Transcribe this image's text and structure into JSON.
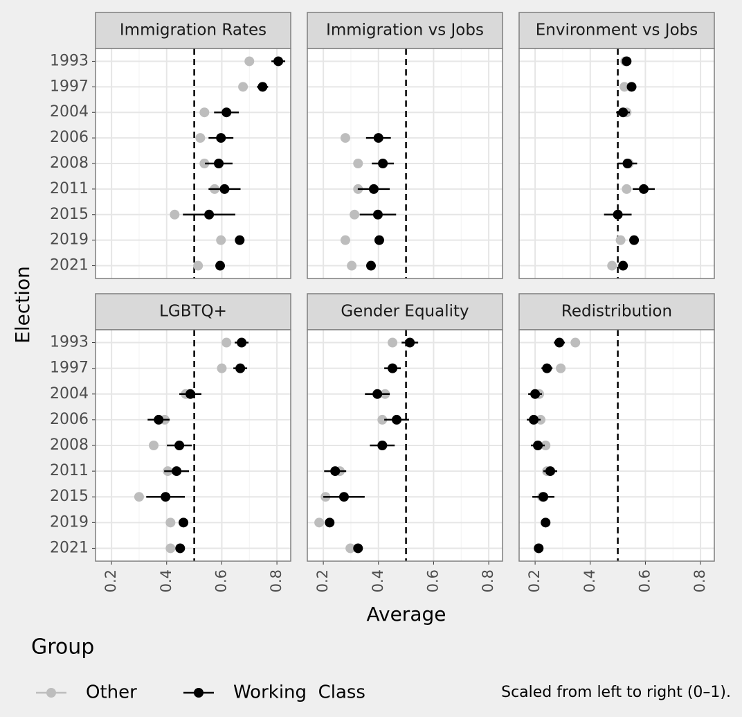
{
  "x_label": "Average",
  "y_label": "Election",
  "legend_title": "Group",
  "caption": "Scaled from left to right (0–1).",
  "chart_data": [
    {
      "type": "dot",
      "title": "Immigration Rates",
      "categories": [
        "1993",
        "1997",
        "2004",
        "2006",
        "2008",
        "2011",
        "2015",
        "2019",
        "2021"
      ],
      "series": [
        {
          "name": "Other",
          "color": "#bdbdbd",
          "values": [
            0.7,
            0.677,
            0.537,
            0.522,
            0.537,
            0.574,
            0.429,
            0.597,
            0.514
          ]
        },
        {
          "name": "Working  Class",
          "color": "#000000",
          "values": [
            0.805,
            0.748,
            0.617,
            0.597,
            0.589,
            0.61,
            0.554,
            0.665,
            0.594
          ],
          "errors": [
            0.025,
            0.02,
            0.045,
            0.045,
            0.05,
            0.058,
            0.095,
            0.012,
            0.012
          ]
        }
      ],
      "xlim": [
        0.142,
        0.85
      ],
      "xticks": [
        0.2,
        0.4,
        0.6,
        0.8
      ],
      "minor_xticks": [
        0.3,
        0.5,
        0.7
      ],
      "vline": 0.5,
      "grid": true
    },
    {
      "type": "dot",
      "title": "Immigration vs Jobs",
      "categories": [
        "1993",
        "1997",
        "2004",
        "2006",
        "2008",
        "2011",
        "2015",
        "2019",
        "2021"
      ],
      "series": [
        {
          "name": "Other",
          "color": "#bdbdbd",
          "values": [
            null,
            null,
            null,
            0.28,
            0.326,
            0.326,
            0.313,
            0.28,
            0.303
          ]
        },
        {
          "name": "Working  Class",
          "color": "#000000",
          "values": [
            null,
            null,
            null,
            0.4,
            0.416,
            0.383,
            0.398,
            0.403,
            0.373
          ],
          "errors": [
            null,
            null,
            null,
            0.045,
            0.04,
            0.058,
            0.066,
            0.012,
            0.012
          ]
        }
      ],
      "xlim": [
        0.142,
        0.85
      ],
      "xticks": [
        0.2,
        0.4,
        0.6,
        0.8
      ],
      "minor_xticks": [
        0.3,
        0.5,
        0.7
      ],
      "vline": 0.5,
      "grid": true
    },
    {
      "type": "dot",
      "title": "Environment vs Jobs",
      "categories": [
        "1993",
        "1997",
        "2004",
        "2006",
        "2008",
        "2011",
        "2015",
        "2019",
        "2021"
      ],
      "series": [
        {
          "name": "Other",
          "color": "#bdbdbd",
          "values": [
            0.527,
            0.524,
            0.532,
            null,
            0.54,
            0.532,
            0.5,
            0.51,
            0.479
          ]
        },
        {
          "name": "Working  Class",
          "color": "#000000",
          "values": [
            0.532,
            0.55,
            0.519,
            null,
            0.535,
            0.594,
            0.5,
            0.559,
            0.519
          ],
          "errors": [
            0.015,
            0.015,
            0.025,
            null,
            0.035,
            0.04,
            0.05,
            0.012,
            0.012
          ]
        }
      ],
      "xlim": [
        0.142,
        0.85
      ],
      "xticks": [
        0.2,
        0.4,
        0.6,
        0.8
      ],
      "minor_xticks": [
        0.3,
        0.5,
        0.7
      ],
      "vline": 0.5,
      "grid": true
    },
    {
      "type": "dot",
      "title": "LGBTQ+",
      "categories": [
        "1993",
        "1997",
        "2004",
        "2006",
        "2008",
        "2011",
        "2015",
        "2019",
        "2021"
      ],
      "series": [
        {
          "name": "Other",
          "color": "#bdbdbd",
          "values": [
            0.617,
            0.6,
            0.469,
            0.393,
            0.353,
            0.404,
            0.3,
            0.414,
            0.414
          ]
        },
        {
          "name": "Working  Class",
          "color": "#000000",
          "values": [
            0.672,
            0.667,
            0.486,
            0.371,
            0.446,
            0.436,
            0.396,
            0.461,
            0.449
          ],
          "errors": [
            0.025,
            0.025,
            0.04,
            0.04,
            0.045,
            0.045,
            0.07,
            0.012,
            0.012
          ]
        }
      ],
      "xlim": [
        0.142,
        0.85
      ],
      "xticks": [
        0.2,
        0.4,
        0.6,
        0.8
      ],
      "minor_xticks": [
        0.3,
        0.5,
        0.7
      ],
      "vline": 0.5,
      "grid": true
    },
    {
      "type": "dot",
      "title": "Gender Equality",
      "categories": [
        "1993",
        "1997",
        "2004",
        "2006",
        "2008",
        "2011",
        "2015",
        "2019",
        "2021"
      ],
      "series": [
        {
          "name": "Other",
          "color": "#bdbdbd",
          "values": [
            0.451,
            0.451,
            0.424,
            0.414,
            0.414,
            0.26,
            0.208,
            0.185,
            0.298
          ]
        },
        {
          "name": "Working  Class",
          "color": "#000000",
          "values": [
            0.514,
            0.451,
            0.396,
            0.466,
            0.414,
            0.243,
            0.275,
            0.223,
            0.326
          ],
          "errors": [
            0.03,
            0.03,
            0.045,
            0.045,
            0.045,
            0.04,
            0.075,
            0.012,
            0.012
          ]
        }
      ],
      "xlim": [
        0.142,
        0.85
      ],
      "xticks": [
        0.2,
        0.4,
        0.6,
        0.8
      ],
      "minor_xticks": [
        0.3,
        0.5,
        0.7
      ],
      "vline": 0.5,
      "grid": true
    },
    {
      "type": "dot",
      "title": "Redistribution",
      "categories": [
        "1993",
        "1997",
        "2004",
        "2006",
        "2008",
        "2011",
        "2015",
        "2019",
        "2021"
      ],
      "series": [
        {
          "name": "Other",
          "color": "#bdbdbd",
          "values": [
            0.346,
            0.293,
            0.215,
            0.22,
            0.238,
            0.243,
            0.225,
            0.238,
            0.213
          ]
        },
        {
          "name": "Working  Class",
          "color": "#000000",
          "values": [
            0.288,
            0.243,
            0.2,
            0.195,
            0.21,
            0.255,
            0.23,
            0.238,
            0.213
          ],
          "errors": [
            0.02,
            0.02,
            0.025,
            0.025,
            0.025,
            0.025,
            0.04,
            0.012,
            0.012
          ]
        }
      ],
      "xlim": [
        0.142,
        0.85
      ],
      "xticks": [
        0.2,
        0.4,
        0.6,
        0.8
      ],
      "minor_xticks": [
        0.3,
        0.5,
        0.7
      ],
      "vline": 0.5,
      "grid": true
    }
  ]
}
